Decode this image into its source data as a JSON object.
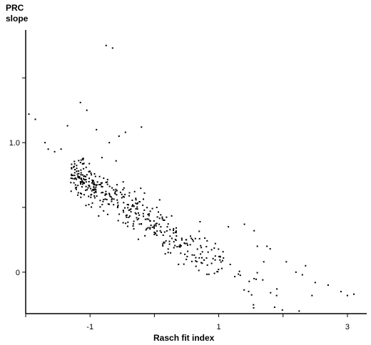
{
  "chart_data": {
    "type": "scatter",
    "ylabel_lines": [
      "PRC",
      "slope"
    ],
    "xlabel": "Rasch fit index",
    "xlim": [
      -2.0,
      3.3
    ],
    "ylim": [
      -0.32,
      1.87
    ],
    "x_ticks": [
      -2,
      -1,
      0,
      1,
      2,
      3
    ],
    "x_tick_labels": [
      {
        "value": -1,
        "label": "-1"
      },
      {
        "value": 1,
        "label": "1"
      },
      {
        "value": 3,
        "label": "3"
      }
    ],
    "y_ticks": [
      0,
      0.5,
      1.0,
      1.5
    ],
    "y_tick_labels": [
      {
        "value": 0,
        "label": "0"
      },
      {
        "value": 1.0,
        "label": "1.0"
      }
    ],
    "grid": false,
    "legend": "none",
    "colors": {
      "points": "#000000",
      "axes": "#000000"
    },
    "point_count": 440,
    "trend": {
      "x_mean": -0.4,
      "x_sd": 0.95,
      "intercept": 0.37,
      "slope": -0.31,
      "noise": 0.08
    },
    "outliers": [
      [
        -1.95,
        1.22
      ],
      [
        -1.85,
        1.18
      ],
      [
        -1.7,
        1.0
      ],
      [
        -1.65,
        0.95
      ],
      [
        -1.55,
        0.93
      ],
      [
        -1.45,
        0.95
      ],
      [
        -1.35,
        1.13
      ],
      [
        -1.15,
        1.31
      ],
      [
        -1.05,
        1.25
      ],
      [
        -0.9,
        1.1
      ],
      [
        -0.75,
        1.75
      ],
      [
        -0.65,
        1.73
      ],
      [
        -0.55,
        1.05
      ],
      [
        -0.45,
        1.08
      ],
      [
        -0.7,
        1.0
      ],
      [
        -0.2,
        1.12
      ],
      [
        0.1,
        0.35
      ],
      [
        0.4,
        0.2
      ],
      [
        1.15,
        0.35
      ],
      [
        1.4,
        0.37
      ],
      [
        1.55,
        0.32
      ],
      [
        1.6,
        0.2
      ],
      [
        1.75,
        0.2
      ],
      [
        1.8,
        0.18
      ],
      [
        1.7,
        0.08
      ],
      [
        2.05,
        0.08
      ],
      [
        2.2,
        0.0
      ],
      [
        2.3,
        -0.02
      ],
      [
        2.35,
        0.05
      ],
      [
        2.5,
        -0.08
      ],
      [
        2.7,
        -0.1
      ],
      [
        2.45,
        -0.18
      ],
      [
        2.9,
        -0.15
      ],
      [
        3.0,
        -0.18
      ],
      [
        3.1,
        -0.17
      ],
      [
        2.25,
        -0.3
      ],
      [
        1.9,
        -0.18
      ],
      [
        1.55,
        -0.05
      ]
    ]
  }
}
